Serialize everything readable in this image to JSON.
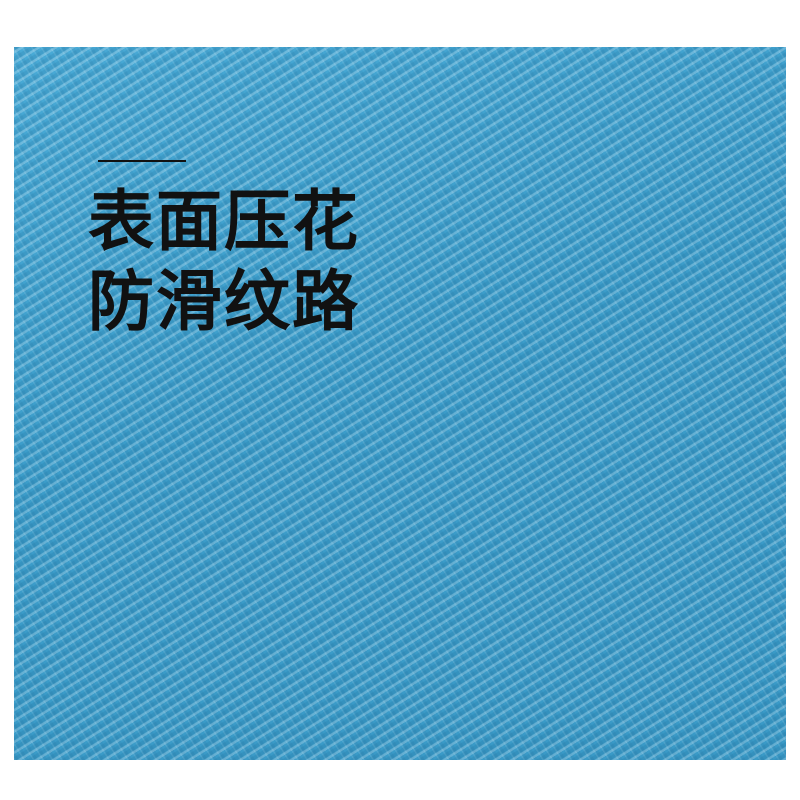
{
  "image": {
    "texture_color": "#3fa0cd",
    "headline": {
      "line1": "表面压花",
      "line2": "防滑纹路"
    },
    "text_color": "#111111"
  }
}
